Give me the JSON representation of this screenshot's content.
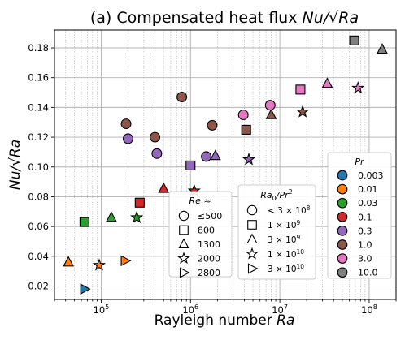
{
  "chart_data": {
    "type": "scatter",
    "title_prefix": "(a) Compensated heat flux ",
    "title_math": "Nu/√Ra",
    "xlabel_prefix": "Rayleigh number ",
    "xlabel_math": "Ra",
    "ylabel_math": "Nu/√Ra",
    "x_scale": "log",
    "xlim": [
      30000,
      200000000
    ],
    "ylim": [
      0.011,
      0.192
    ],
    "grid": true,
    "x_major_ticks": [
      {
        "value": 100000,
        "base": "10",
        "exp": "5"
      },
      {
        "value": 1000000,
        "base": "10",
        "exp": "6"
      },
      {
        "value": 10000000,
        "base": "10",
        "exp": "7"
      },
      {
        "value": 100000000,
        "base": "10",
        "exp": "8"
      }
    ],
    "y_ticks": [
      {
        "value": 0.02,
        "label": "0.02"
      },
      {
        "value": 0.04,
        "label": "0.04"
      },
      {
        "value": 0.06,
        "label": "0.06"
      },
      {
        "value": 0.08,
        "label": "0.08"
      },
      {
        "value": 0.1,
        "label": "0.10"
      },
      {
        "value": 0.12,
        "label": "0.12"
      },
      {
        "value": 0.14,
        "label": "0.14"
      },
      {
        "value": 0.16,
        "label": "0.16"
      },
      {
        "value": 0.18,
        "label": "0.18"
      }
    ],
    "points": [
      {
        "x": 65000,
        "y": 0.018,
        "marker": "triangle-right",
        "pr": "0.003"
      },
      {
        "x": 43000,
        "y": 0.036,
        "marker": "triangle-up",
        "pr": "0.01"
      },
      {
        "x": 95000,
        "y": 0.034,
        "marker": "star",
        "pr": "0.01"
      },
      {
        "x": 185000,
        "y": 0.037,
        "marker": "triangle-right",
        "pr": "0.01"
      },
      {
        "x": 65000,
        "y": 0.063,
        "marker": "square",
        "pr": "0.03"
      },
      {
        "x": 130000,
        "y": 0.066,
        "marker": "triangle-up",
        "pr": "0.03"
      },
      {
        "x": 250000,
        "y": 0.066,
        "marker": "star",
        "pr": "0.03"
      },
      {
        "x": 270000,
        "y": 0.076,
        "marker": "square",
        "pr": "0.1"
      },
      {
        "x": 500000,
        "y": 0.0855,
        "marker": "triangle-up",
        "pr": "0.1"
      },
      {
        "x": 1100000,
        "y": 0.084,
        "marker": "star",
        "pr": "0.1"
      },
      {
        "x": 200000,
        "y": 0.119,
        "marker": "circle",
        "pr": "0.3"
      },
      {
        "x": 420000,
        "y": 0.109,
        "marker": "circle",
        "pr": "0.3"
      },
      {
        "x": 1000000,
        "y": 0.101,
        "marker": "square",
        "pr": "0.3"
      },
      {
        "x": 1500000,
        "y": 0.107,
        "marker": "circle",
        "pr": "0.3"
      },
      {
        "x": 1900000,
        "y": 0.1075,
        "marker": "triangle-up",
        "pr": "0.3"
      },
      {
        "x": 4500000,
        "y": 0.105,
        "marker": "star",
        "pr": "0.3"
      },
      {
        "x": 190000,
        "y": 0.129,
        "marker": "circle",
        "pr": "1.0"
      },
      {
        "x": 400000,
        "y": 0.12,
        "marker": "circle",
        "pr": "1.0"
      },
      {
        "x": 800000,
        "y": 0.147,
        "marker": "circle",
        "pr": "1.0"
      },
      {
        "x": 1750000,
        "y": 0.128,
        "marker": "circle",
        "pr": "1.0"
      },
      {
        "x": 4200000,
        "y": 0.125,
        "marker": "square",
        "pr": "1.0"
      },
      {
        "x": 8000000,
        "y": 0.135,
        "marker": "triangle-up",
        "pr": "1.0"
      },
      {
        "x": 18000000,
        "y": 0.137,
        "marker": "star",
        "pr": "1.0"
      },
      {
        "x": 3900000,
        "y": 0.135,
        "marker": "circle",
        "pr": "3.0"
      },
      {
        "x": 7800000,
        "y": 0.1415,
        "marker": "circle",
        "pr": "3.0"
      },
      {
        "x": 17000000,
        "y": 0.152,
        "marker": "square",
        "pr": "3.0"
      },
      {
        "x": 34000000,
        "y": 0.156,
        "marker": "triangle-up",
        "pr": "3.0"
      },
      {
        "x": 75000000,
        "y": 0.153,
        "marker": "star",
        "pr": "3.0"
      },
      {
        "x": 68000000,
        "y": 0.185,
        "marker": "square",
        "pr": "10.0"
      },
      {
        "x": 140000000,
        "y": 0.179,
        "marker": "triangle-up",
        "pr": "10.0"
      }
    ],
    "legend_re": {
      "title": "Re ≈",
      "entries": [
        {
          "marker": "circle",
          "label": "≤500"
        },
        {
          "marker": "square",
          "label": "800"
        },
        {
          "marker": "triangle-up",
          "label": "1300"
        },
        {
          "marker": "star",
          "label": "2000"
        },
        {
          "marker": "triangle-right",
          "label": "2800"
        }
      ]
    },
    "legend_ra": {
      "title_main": "Ra",
      "title_sub": "0",
      "title_tail": "/Pr",
      "title_sup": "2",
      "entries": [
        {
          "marker": "circle",
          "prefix": "< 3 × 10",
          "exp": "8"
        },
        {
          "marker": "square",
          "prefix": "1 × 10",
          "exp": "9"
        },
        {
          "marker": "triangle-up",
          "prefix": "3 × 10",
          "exp": "9"
        },
        {
          "marker": "star",
          "prefix": "1 × 10",
          "exp": "10"
        },
        {
          "marker": "triangle-right",
          "prefix": "3 × 10",
          "exp": "10"
        }
      ]
    },
    "legend_pr": {
      "title": "Pr",
      "entries": [
        {
          "label": "0.003",
          "color": "#1f77b4"
        },
        {
          "label": "0.01",
          "color": "#ff7f0e"
        },
        {
          "label": "0.03",
          "color": "#2ca02c"
        },
        {
          "label": "0.1",
          "color": "#d62728"
        },
        {
          "label": "0.3",
          "color": "#9467bd"
        },
        {
          "label": "1.0",
          "color": "#8c564b"
        },
        {
          "label": "3.0",
          "color": "#e377c2"
        },
        {
          "label": "10.0",
          "color": "#7f7f7f"
        }
      ]
    }
  }
}
